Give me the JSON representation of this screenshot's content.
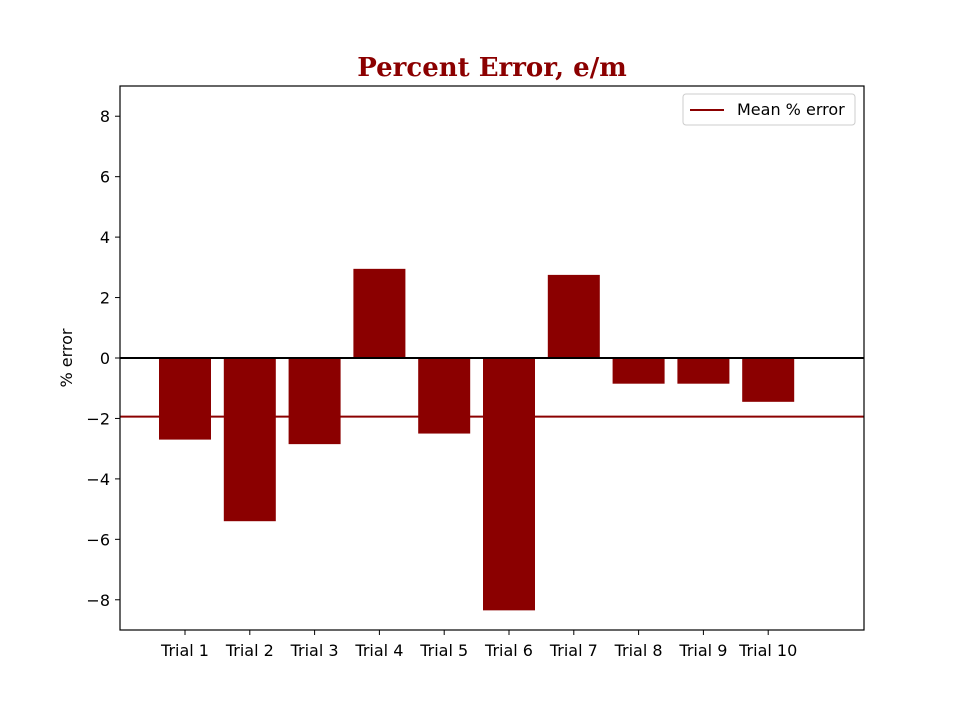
{
  "chart_data": {
    "type": "bar",
    "title": "Percent Error, e/m",
    "xlabel": "",
    "ylabel": "% error",
    "categories": [
      "Trial 1",
      "Trial 2",
      "Trial 3",
      "Trial 4",
      "Trial 5",
      "Trial 6",
      "Trial 7",
      "Trial 8",
      "Trial 9",
      "Trial 10"
    ],
    "values": [
      -2.7,
      -5.4,
      -2.85,
      2.95,
      -2.5,
      -8.35,
      2.75,
      -0.85,
      -0.85,
      -1.45
    ],
    "ylim": [
      -9,
      9
    ],
    "yticks": [
      -8,
      -6,
      -4,
      -2,
      0,
      2,
      4,
      6,
      8
    ],
    "ytick_labels": [
      "−8",
      "−6",
      "−4",
      "−2",
      "0",
      "2",
      "4",
      "6",
      "8"
    ],
    "mean_error": -1.94,
    "legend": {
      "entries": [
        "Mean % error"
      ],
      "placement": "top-right"
    },
    "grid": false,
    "colors": {
      "bar": "#8b0000",
      "mean_line": "#8b0000",
      "title": "#8b0000",
      "zero_line": "#000000"
    }
  }
}
